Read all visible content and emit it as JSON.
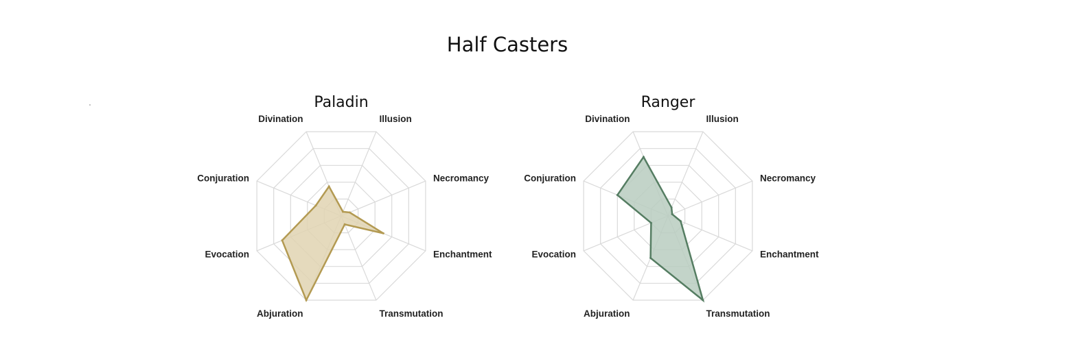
{
  "page": {
    "title": "Half Casters"
  },
  "chart_data": [
    {
      "type": "radar",
      "title": "Paladin",
      "categories": [
        "Divination",
        "Illusion",
        "Necromancy",
        "Enchantment",
        "Transmutation",
        "Abjuration",
        "Evocation",
        "Conjuration"
      ],
      "series": [
        {
          "values": [
            3.5,
            0.5,
            1,
            5,
            1,
            10,
            7,
            3
          ],
          "color": "#b39a52",
          "fill": "#e0d4b2"
        }
      ],
      "rmax": 10,
      "rings": 5,
      "grid": true,
      "legend": "none"
    },
    {
      "type": "radar",
      "title": "Ranger",
      "categories": [
        "Divination",
        "Illusion",
        "Necromancy",
        "Enchantment",
        "Transmutation",
        "Abjuration",
        "Evocation",
        "Conjuration"
      ],
      "series": [
        {
          "values": [
            7,
            1,
            0.5,
            1.5,
            10,
            5,
            2,
            6
          ],
          "color": "#557d62",
          "fill": "#b8cdbf"
        }
      ],
      "rmax": 10,
      "rings": 5,
      "grid": true,
      "legend": "none"
    }
  ]
}
